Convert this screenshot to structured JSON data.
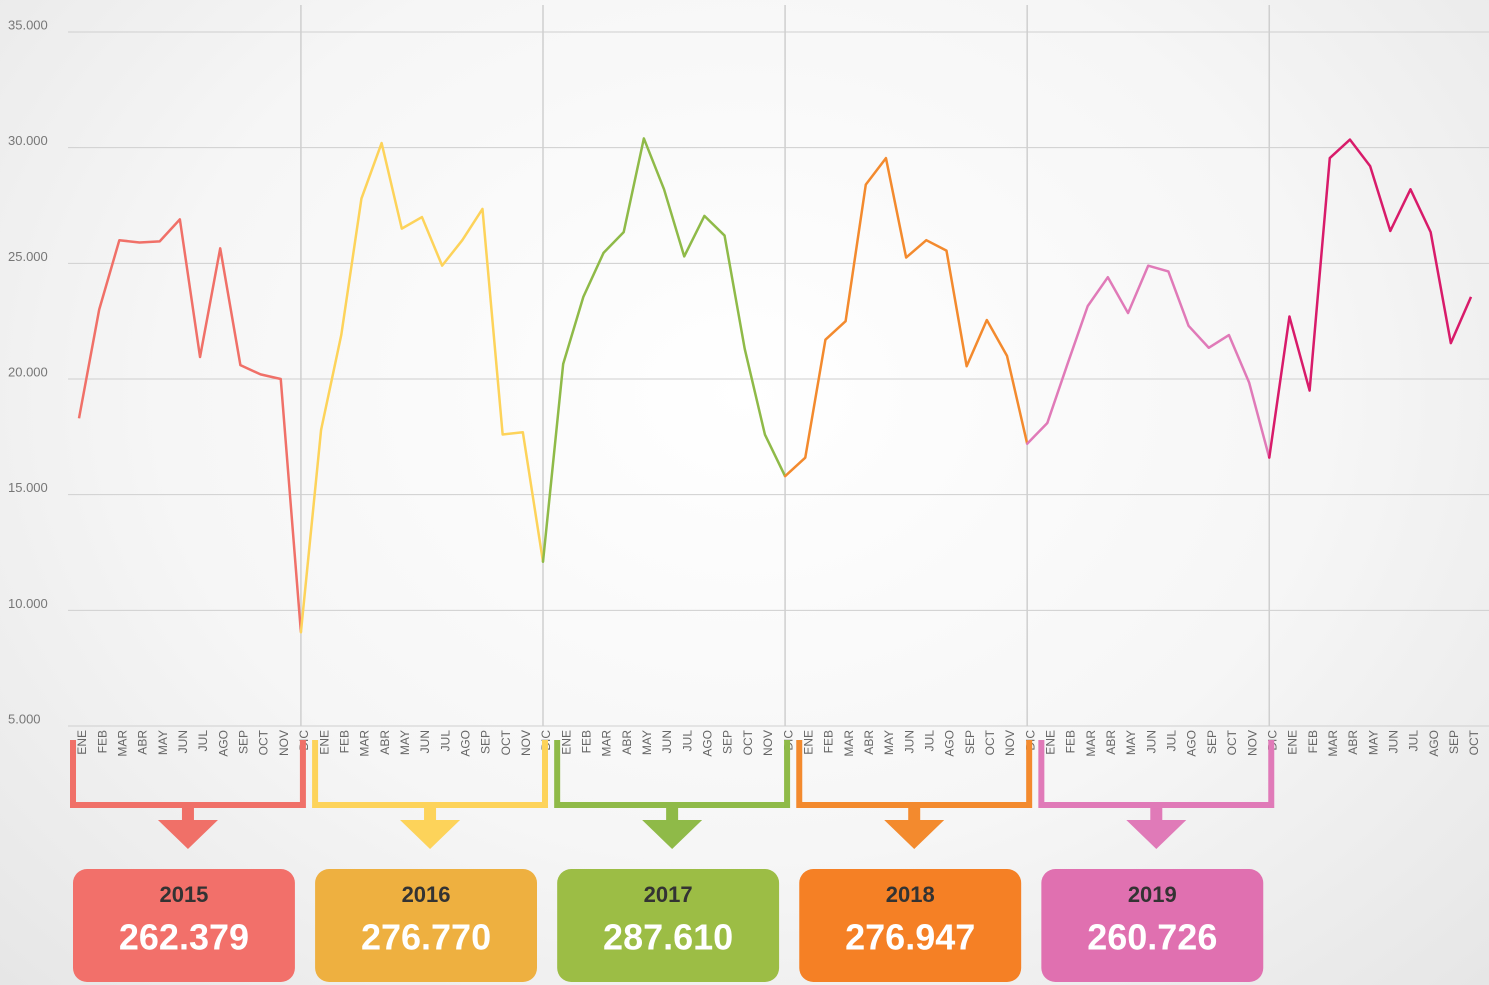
{
  "chart_data": {
    "type": "line",
    "categories": [
      "ENE",
      "FEB",
      "MAR",
      "ABR",
      "MAY",
      "JUN",
      "JUL",
      "AGO",
      "SEP",
      "OCT",
      "NOV",
      "DIC",
      "ENE",
      "FEB",
      "MAR",
      "ABR",
      "MAY",
      "JUN",
      "JUL",
      "AGO",
      "SEP",
      "OCT",
      "NOV",
      "DIC",
      "ENE",
      "FEB",
      "MAR",
      "ABR",
      "MAY",
      "JUN",
      "JUL",
      "AGO",
      "SEP",
      "OCT",
      "NOV",
      "DIC",
      "ENE",
      "FEB",
      "MAR",
      "ABR",
      "MAY",
      "JUN",
      "JUL",
      "AGO",
      "SEP",
      "OCT",
      "NOV",
      "DIC",
      "ENE",
      "FEB",
      "MAR",
      "ABR",
      "MAY",
      "JUN",
      "JUL",
      "AGO",
      "SEP",
      "OCT",
      "NOV",
      "DIC",
      "ENE",
      "FEB",
      "MAR",
      "ABR",
      "MAY",
      "JUN",
      "JUL",
      "AGO",
      "SEP",
      "OCT"
    ],
    "ylim": [
      5000,
      35000
    ],
    "yticks": [
      {
        "value": 5000,
        "label": "5.000"
      },
      {
        "value": 10000,
        "label": "10.000"
      },
      {
        "value": 15000,
        "label": "15.000"
      },
      {
        "value": 20000,
        "label": "20.000"
      },
      {
        "value": 25000,
        "label": "25.000"
      },
      {
        "value": 30000,
        "label": "30.000"
      },
      {
        "value": 35000,
        "label": "35.000"
      }
    ],
    "grid": true,
    "series": [
      {
        "name": "2015",
        "color": "#f07068",
        "box_color": "#f2706a",
        "total": 262379,
        "total_label": "262.379",
        "values": [
          18300,
          23000,
          26000,
          25900,
          25950,
          26900,
          20950,
          25650,
          20600,
          20200,
          20000,
          9050,
          null,
          null,
          null,
          null,
          null,
          null,
          null,
          null,
          null,
          null,
          null,
          null,
          null,
          null,
          null,
          null,
          null,
          null,
          null,
          null,
          null,
          null,
          null,
          null,
          null,
          null,
          null,
          null,
          null,
          null,
          null,
          null,
          null,
          null,
          null,
          null,
          null,
          null,
          null,
          null,
          null,
          null,
          null,
          null,
          null,
          null,
          null,
          null,
          null,
          null,
          null,
          null,
          null,
          null,
          null,
          null,
          null,
          null
        ]
      },
      {
        "name": "2016",
        "color": "#fdd35a",
        "box_color": "#eeb040",
        "total": 276770,
        "total_label": "276.770",
        "values": [
          null,
          null,
          null,
          null,
          null,
          null,
          null,
          null,
          null,
          null,
          null,
          null,
          17800,
          21900,
          27800,
          30200,
          26500,
          27000,
          24900,
          26000,
          27350,
          17600,
          17700,
          12100,
          null,
          null,
          null,
          null,
          null,
          null,
          null,
          null,
          null,
          null,
          null,
          null,
          null,
          null,
          null,
          null,
          null,
          null,
          null,
          null,
          null,
          null,
          null,
          null,
          null,
          null,
          null,
          null,
          null,
          null,
          null,
          null,
          null,
          null,
          null,
          null,
          null,
          null,
          null,
          null,
          null,
          null,
          null,
          null,
          null,
          null
        ]
      },
      {
        "name": "2017",
        "color": "#8fba48",
        "box_color": "#9cbd45",
        "total": 287610,
        "total_label": "287.610",
        "values": [
          null,
          null,
          null,
          null,
          null,
          null,
          null,
          null,
          null,
          null,
          null,
          null,
          null,
          null,
          null,
          null,
          null,
          null,
          null,
          null,
          null,
          null,
          null,
          null,
          20650,
          23550,
          25450,
          26350,
          30400,
          28200,
          25300,
          27050,
          26200,
          21300,
          17600,
          15800,
          null,
          null,
          null,
          null,
          null,
          null,
          null,
          null,
          null,
          null,
          null,
          null,
          null,
          null,
          null,
          null,
          null,
          null,
          null,
          null,
          null,
          null,
          null,
          null,
          null,
          null,
          null,
          null,
          null,
          null,
          null,
          null,
          null,
          null
        ]
      },
      {
        "name": "2018",
        "color": "#f38a2e",
        "box_color": "#f58025",
        "total": 276947,
        "total_label": "276.947",
        "values": [
          null,
          null,
          null,
          null,
          null,
          null,
          null,
          null,
          null,
          null,
          null,
          null,
          null,
          null,
          null,
          null,
          null,
          null,
          null,
          null,
          null,
          null,
          null,
          null,
          null,
          null,
          null,
          null,
          null,
          null,
          null,
          null,
          null,
          null,
          null,
          null,
          16600,
          21700,
          22500,
          28400,
          29550,
          25250,
          26000,
          25550,
          20550,
          22550,
          21000,
          17200,
          null,
          null,
          null,
          null,
          null,
          null,
          null,
          null,
          null,
          null,
          null,
          null,
          null,
          null,
          null,
          null,
          null,
          null,
          null,
          null,
          null,
          null
        ]
      },
      {
        "name": "2019",
        "color": "#e07ab8",
        "box_color": "#e070b0",
        "total": 260726,
        "total_label": "260.726",
        "values": [
          null,
          null,
          null,
          null,
          null,
          null,
          null,
          null,
          null,
          null,
          null,
          null,
          null,
          null,
          null,
          null,
          null,
          null,
          null,
          null,
          null,
          null,
          null,
          null,
          null,
          null,
          null,
          null,
          null,
          null,
          null,
          null,
          null,
          null,
          null,
          null,
          null,
          null,
          null,
          null,
          null,
          null,
          null,
          null,
          null,
          null,
          null,
          null,
          18100,
          20650,
          23150,
          24400,
          22850,
          24900,
          24650,
          22300,
          21350,
          21900,
          19850,
          16600,
          null,
          null,
          null,
          null,
          null,
          null,
          null,
          null,
          null,
          null
        ]
      },
      {
        "color": "#d81b6a",
        "values": [
          null,
          null,
          null,
          null,
          null,
          null,
          null,
          null,
          null,
          null,
          null,
          null,
          null,
          null,
          null,
          null,
          null,
          null,
          null,
          null,
          null,
          null,
          null,
          null,
          null,
          null,
          null,
          null,
          null,
          null,
          null,
          null,
          null,
          null,
          null,
          null,
          null,
          null,
          null,
          null,
          null,
          null,
          null,
          null,
          null,
          null,
          null,
          null,
          null,
          null,
          null,
          null,
          null,
          null,
          null,
          null,
          null,
          null,
          null,
          null,
          22700,
          19500,
          29550,
          30350,
          29200,
          26400,
          28200,
          26350,
          21550,
          23550
        ]
      }
    ]
  }
}
